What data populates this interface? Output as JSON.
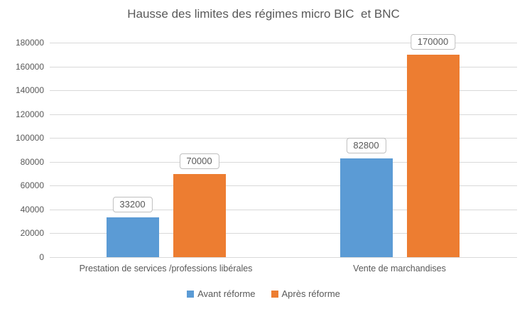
{
  "title": "Hausse des limites des régimes micro BIC  et BNC",
  "colors": {
    "series_avant": "#5B9BD5",
    "series_apres": "#ED7D31",
    "text": "#595959",
    "gridline": "#D9D9D9",
    "data_label_border": "#BFBFBF",
    "background": "#FFFFFF"
  },
  "legend": {
    "position": "bottom",
    "items": [
      {
        "label": "Avant réforme",
        "color": "#5B9BD5"
      },
      {
        "label": "Après réforme",
        "color": "#ED7D31"
      }
    ]
  },
  "chart_data": {
    "type": "bar",
    "title": "Hausse des limites des régimes micro BIC  et BNC",
    "categories": [
      "Prestation de services /professions libérales",
      "Vente de marchandises"
    ],
    "series": [
      {
        "name": "Avant réforme",
        "color": "#5B9BD5",
        "values": [
          33200,
          82800
        ]
      },
      {
        "name": "Après réforme",
        "color": "#ED7D31",
        "values": [
          70000,
          170000
        ]
      }
    ],
    "data_labels": [
      [
        "33200",
        "82800"
      ],
      [
        "70000",
        "170000"
      ]
    ],
    "xlabel": "",
    "ylabel": "",
    "ylim": [
      0,
      180000
    ],
    "yticks": [
      0,
      20000,
      40000,
      60000,
      80000,
      100000,
      120000,
      140000,
      160000,
      180000
    ],
    "ytick_labels": [
      "0",
      "20000",
      "40000",
      "60000",
      "80000",
      "100000",
      "120000",
      "140000",
      "160000",
      "180000"
    ],
    "grid": true,
    "legend_position": "bottom"
  }
}
